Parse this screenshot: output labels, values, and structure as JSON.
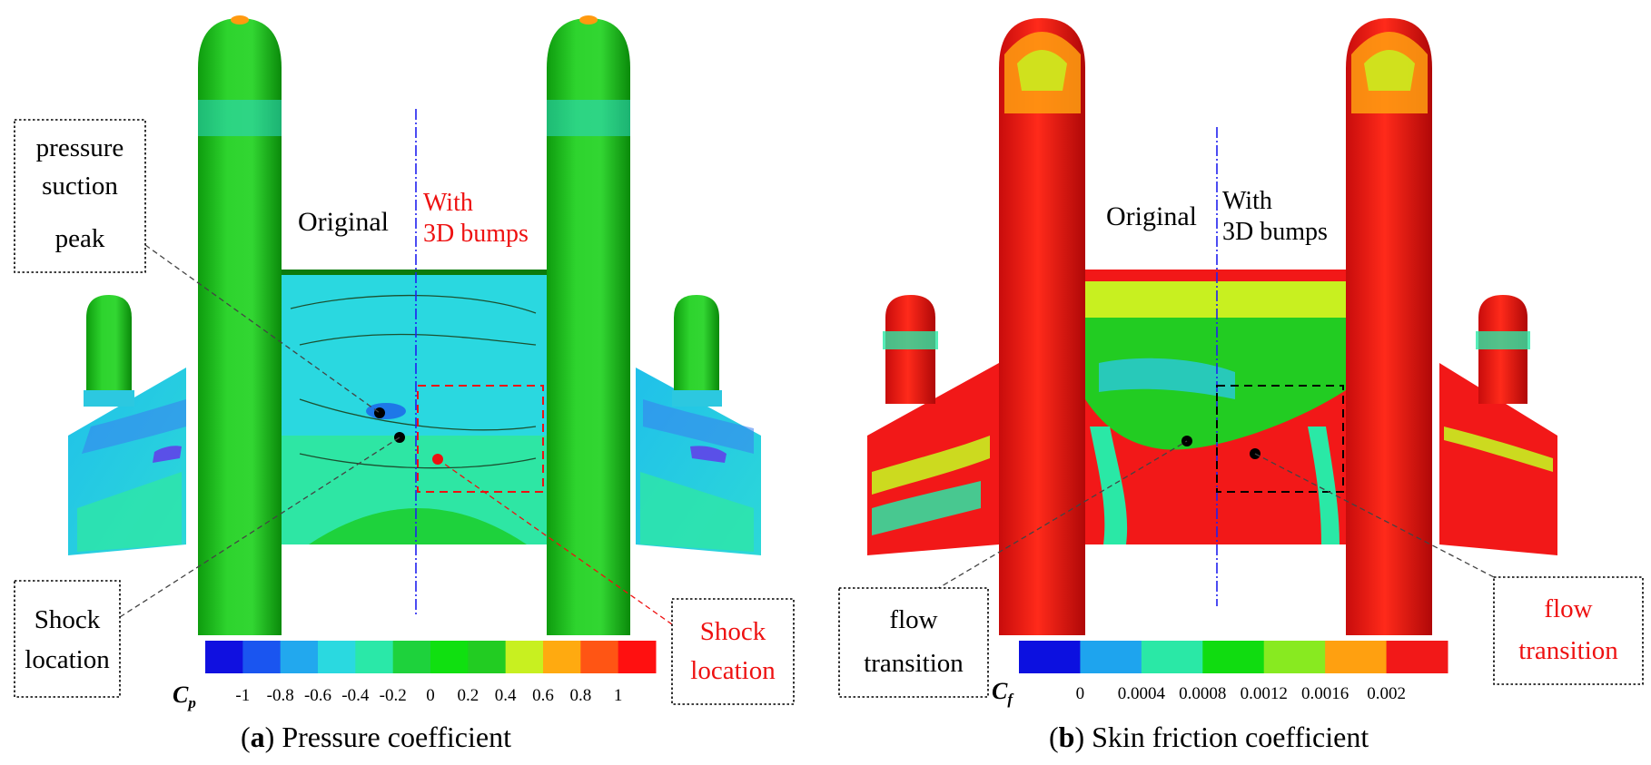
{
  "panel_a": {
    "caption_letter": "a",
    "caption_text": "Pressure coefficient",
    "label_original": "Original",
    "label_with_1": "With",
    "label_with_2": "3D bumps",
    "anno_top": [
      "pressure",
      "suction",
      "peak"
    ],
    "anno_bottom_left": [
      "Shock",
      "location"
    ],
    "anno_bottom_right": [
      "Shock",
      "location"
    ],
    "legend_symbol": "C",
    "legend_sub": "p",
    "legend_ticks": [
      "-1",
      "-0.8",
      "-0.6",
      "-0.4",
      "-0.2",
      "0",
      "0.2",
      "0.4",
      "0.6",
      "0.8",
      "1"
    ],
    "legend_colors": [
      "#1010e0",
      "#1a55f0",
      "#22a8ee",
      "#2ad9e0",
      "#2ae8a8",
      "#1ed23c",
      "#10e010",
      "#22cc22",
      "#c8f020",
      "#ffaa10",
      "#ff5514",
      "#ff1010"
    ]
  },
  "panel_b": {
    "caption_letter": "b",
    "caption_text": "Skin friction coefficient",
    "label_original": "Original",
    "label_with_1": "With",
    "label_with_2": "3D bumps",
    "anno_bottom_left": [
      "flow",
      "transition"
    ],
    "anno_bottom_right": [
      "flow",
      "transition"
    ],
    "legend_symbol": "C",
    "legend_sub": "f",
    "legend_ticks": [
      "0",
      "0.0004",
      "0.0008",
      "0.0012",
      "0.0016",
      "0.002"
    ],
    "legend_colors": [
      "#0c10e0",
      "#1ea4ee",
      "#2ae8a6",
      "#10dc10",
      "#88ea20",
      "#ffa010",
      "#f21818"
    ]
  },
  "colors": {
    "red_text": "#ee1111",
    "centerline": "#2020ee"
  }
}
